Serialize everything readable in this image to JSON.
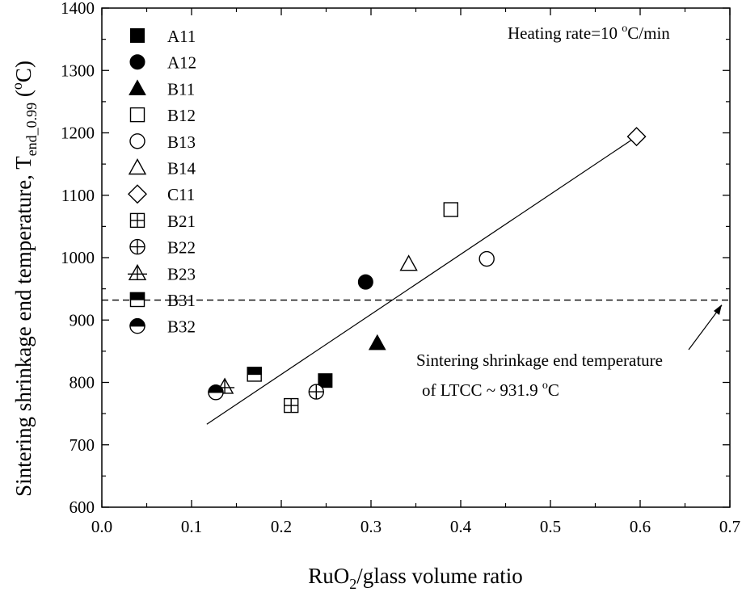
{
  "chart_data": {
    "type": "scatter",
    "xlabel": "RuO2/glass volume ratio",
    "xlabel_parts": {
      "base": "RuO",
      "sub": "2",
      "rest": "/glass volume ratio"
    },
    "ylabel": "Sintering shrinkage end temperature, Tend_0.99 (oC)",
    "ylabel_parts": {
      "base": "Sintering shrinkage end temperature, T",
      "sub": "end_0.99",
      "open": " (",
      "sup": "o",
      "close": "C)"
    },
    "xlim": [
      0.0,
      0.7
    ],
    "ylim": [
      600,
      1400
    ],
    "x_ticks": [
      "0.0",
      "0.1",
      "0.2",
      "0.3",
      "0.4",
      "0.5",
      "0.6",
      "0.7"
    ],
    "y_ticks": [
      "600",
      "700",
      "800",
      "900",
      "1000",
      "1100",
      "1200",
      "1300",
      "1400"
    ],
    "series": [
      {
        "name": "A11",
        "marker": "square-filled",
        "x": 0.249,
        "y": 803
      },
      {
        "name": "A12",
        "marker": "circle-filled",
        "x": 0.294,
        "y": 961
      },
      {
        "name": "B11",
        "marker": "triangle-filled",
        "x": 0.307,
        "y": 863
      },
      {
        "name": "B12",
        "marker": "square-open",
        "x": 0.389,
        "y": 1077
      },
      {
        "name": "B13",
        "marker": "circle-open",
        "x": 0.429,
        "y": 998
      },
      {
        "name": "B14",
        "marker": "triangle-open",
        "x": 0.342,
        "y": 990
      },
      {
        "name": "C11",
        "marker": "diamond-open",
        "x": 0.596,
        "y": 1194
      },
      {
        "name": "B21",
        "marker": "square-plus",
        "x": 0.211,
        "y": 763
      },
      {
        "name": "B22",
        "marker": "circle-plus",
        "x": 0.239,
        "y": 785
      },
      {
        "name": "B23",
        "marker": "triangle-plus",
        "x": 0.137,
        "y": 793
      },
      {
        "name": "B31",
        "marker": "square-half",
        "x": 0.17,
        "y": 813
      },
      {
        "name": "B32",
        "marker": "circle-half",
        "x": 0.127,
        "y": 784
      }
    ],
    "fit_line": {
      "x1": 0.117,
      "y1": 733,
      "x2": 0.596,
      "y2": 1194
    },
    "reference_line": {
      "y": 931.9,
      "style": "dashed"
    },
    "annotation": {
      "heating_rate": {
        "prefix": "Heating rate=10 ",
        "sup": "o",
        "suffix": "C/min"
      },
      "ref_label_line1": "Sintering shrinkage end temperature",
      "ref_label_line2": {
        "prefix": "of LTCC ~ 931.9 ",
        "sup": "o",
        "suffix": "C"
      }
    },
    "legend_position": "top-left"
  }
}
